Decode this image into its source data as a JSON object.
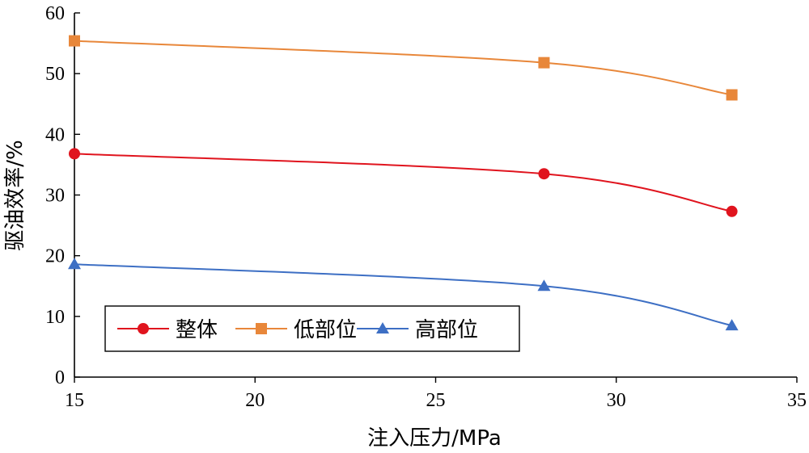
{
  "chart_data": {
    "type": "line",
    "title": "",
    "xlabel": "注入压力/MPa",
    "ylabel": "驱油效率/%",
    "xlim": [
      15,
      35
    ],
    "ylim": [
      0,
      60
    ],
    "xticks": [
      15,
      20,
      25,
      30,
      35
    ],
    "yticks": [
      0,
      10,
      20,
      30,
      40,
      50,
      60
    ],
    "grid": false,
    "legend_position": "bottom-left",
    "series": [
      {
        "name": "整体",
        "color": "#e0141e",
        "marker": "circle",
        "x": [
          15,
          28,
          33.2
        ],
        "y": [
          36.8,
          33.5,
          27.3
        ]
      },
      {
        "name": "低部位",
        "color": "#e8873a",
        "marker": "square",
        "x": [
          15,
          28,
          33.2
        ],
        "y": [
          55.4,
          51.8,
          46.5
        ]
      },
      {
        "name": "高部位",
        "color": "#3d6fc4",
        "marker": "triangle",
        "x": [
          15,
          28,
          33.2
        ],
        "y": [
          18.6,
          15.0,
          8.5
        ]
      }
    ]
  }
}
